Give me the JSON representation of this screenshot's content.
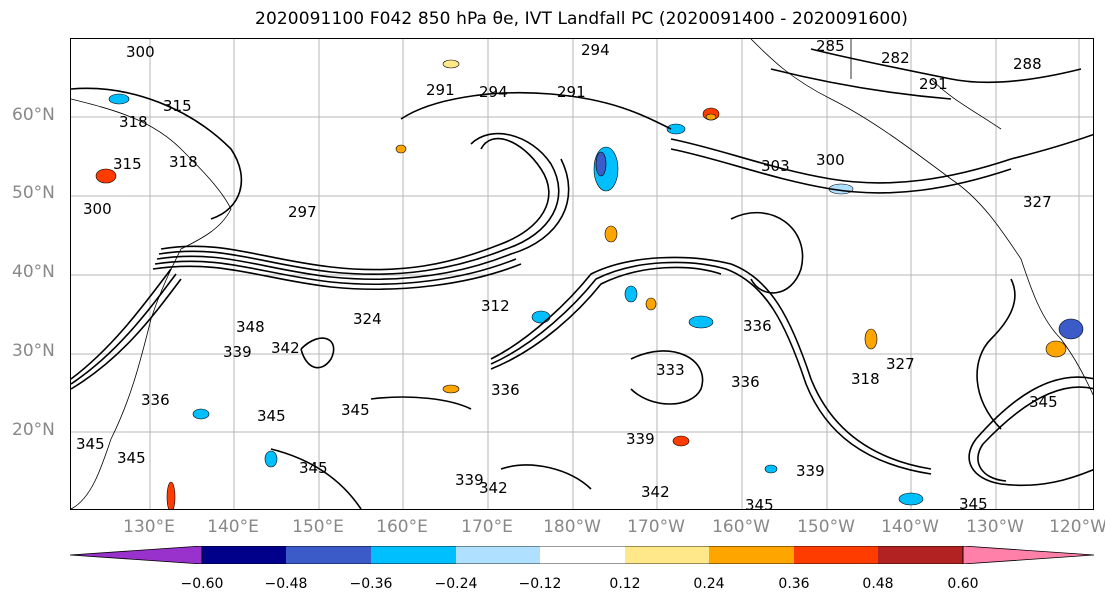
{
  "title": "2020091100 F042 850 hPa θe, IVT Landfall PC (2020091400 - 2020091600)",
  "lat_ticks": [
    "60°N",
    "50°N",
    "40°N",
    "30°N",
    "20°N"
  ],
  "lon_ticks": [
    "130°E",
    "140°E",
    "150°E",
    "160°E",
    "170°E",
    "180°W",
    "170°W",
    "160°W",
    "150°W",
    "140°W",
    "130°W",
    "120°W"
  ],
  "contour_labels": [
    "294",
    "285",
    "282",
    "288",
    "291",
    "291",
    "294",
    "291",
    "300",
    "300",
    "303",
    "300",
    "315",
    "318",
    "315",
    "318",
    "297",
    "327",
    "312",
    "324",
    "336",
    "342",
    "339",
    "348",
    "336",
    "345",
    "336",
    "345",
    "345",
    "339",
    "342",
    "345",
    "342",
    "345",
    "339",
    "345",
    "345",
    "318",
    "327",
    "336",
    "333",
    "339",
    "345"
  ],
  "colorbar": {
    "colors": [
      "#9932cc",
      "#00008b",
      "#3a5bc8",
      "#00bfff",
      "#b0e0ff",
      "#ffffff",
      "#ffe88a",
      "#ffa500",
      "#ff3c00",
      "#b22222",
      "#ff80a8"
    ],
    "ticks": [
      "−0.60",
      "−0.48",
      "−0.36",
      "−0.24",
      "−0.12",
      "0.12",
      "0.24",
      "0.36",
      "0.48",
      "0.60"
    ]
  }
}
